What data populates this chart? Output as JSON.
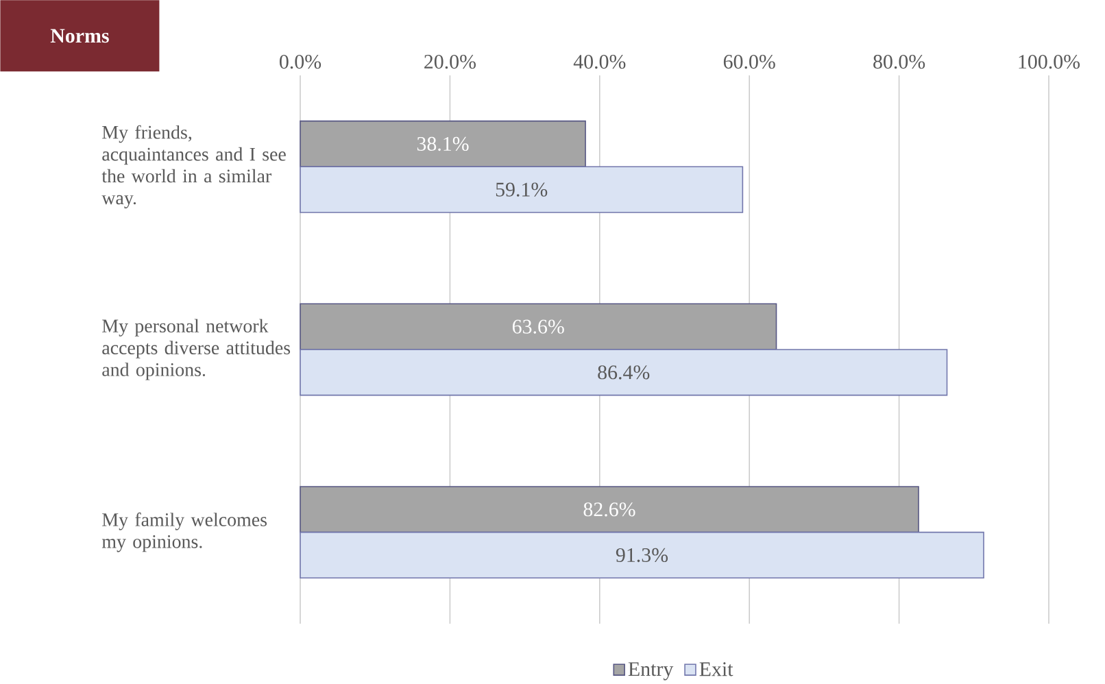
{
  "chart_data": {
    "type": "bar",
    "orientation": "horizontal",
    "title": "Norms",
    "categories": [
      "My friends, acquaintances and I see the world in a similar way.",
      "My personal network accepts diverse attitudes and opinions.",
      "My family welcomes my opinions."
    ],
    "series": [
      {
        "name": "Entry",
        "color": "#a5a5a5",
        "values": [
          38.1,
          63.6,
          82.6
        ],
        "value_labels": [
          "38.1%",
          "63.6%",
          "82.6%"
        ]
      },
      {
        "name": "Exit",
        "color": "#dae3f3",
        "values": [
          59.1,
          86.4,
          91.3
        ],
        "value_labels": [
          "59.1%",
          "86.4%",
          "91.3%"
        ]
      }
    ],
    "xlim": [
      0,
      100
    ],
    "xticks": [
      {
        "value": 0,
        "label": "0.0%"
      },
      {
        "value": 20,
        "label": "20.0%"
      },
      {
        "value": 40,
        "label": "40.0%"
      },
      {
        "value": 60,
        "label": "60.0%"
      },
      {
        "value": 80,
        "label": "80.0%"
      },
      {
        "value": 100,
        "label": "100.0%"
      }
    ],
    "grid": "x",
    "legend": "bottom"
  }
}
